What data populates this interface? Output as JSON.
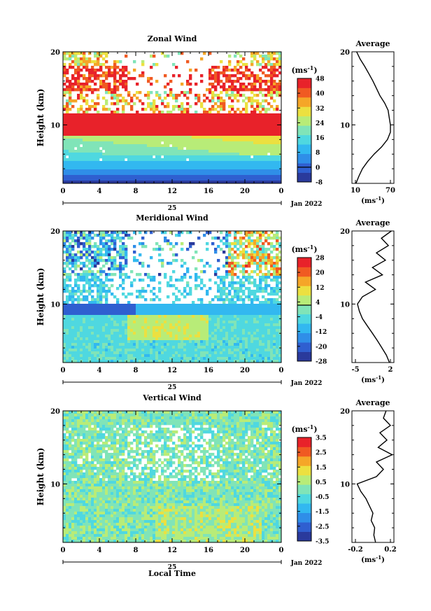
{
  "figure": {
    "x_time_label": "Local Time",
    "date_day": "25",
    "date_text": "Jan 2022",
    "colorbar_units": "(ms⁻¹)",
    "average_title": "Average",
    "y_axis_label": "Height (km)"
  },
  "colors": {
    "scale": [
      "#2a3a9c",
      "#2f5fd0",
      "#2f8ee8",
      "#32b8f0",
      "#4fd8e0",
      "#80e4b8",
      "#b8ec78",
      "#ece040",
      "#f5a628",
      "#f05a22",
      "#e8222a"
    ]
  },
  "chart_data": [
    {
      "type": "heatmap",
      "title": "Zonal Wind",
      "xlabel": "",
      "ylabel": "Height (km)",
      "x_ticks": [
        "0",
        "4",
        "8",
        "12",
        "16",
        "20",
        "0"
      ],
      "y_ticks": [
        "10",
        "20"
      ],
      "xlim": [
        0,
        24
      ],
      "ylim": [
        2,
        20
      ],
      "colorbar": {
        "units": "(ms⁻¹)",
        "ticks": [
          "48",
          "40",
          "32",
          "24",
          "16",
          "8",
          "0",
          "-8"
        ],
        "range": [
          -8,
          48
        ]
      },
      "profile": {
        "title": "Average",
        "xlabel": "(ms⁻¹)",
        "x_ticks": [
          "10",
          "70"
        ],
        "xlim": [
          10,
          70
        ],
        "heights": [
          2,
          3,
          4,
          5,
          6,
          7,
          8,
          9,
          10,
          11,
          12,
          13,
          14,
          15,
          16,
          17,
          18,
          19,
          20
        ],
        "values": [
          11,
          16,
          22,
          31,
          42,
          55,
          65,
          70,
          70,
          68,
          66,
          60,
          52,
          46,
          40,
          33,
          26,
          18,
          12
        ]
      }
    },
    {
      "type": "heatmap",
      "title": "Meridional Wind",
      "xlabel": "",
      "ylabel": "Height (km)",
      "x_ticks": [
        "0",
        "4",
        "8",
        "12",
        "16",
        "20",
        "0"
      ],
      "y_ticks": [
        "10",
        "20"
      ],
      "xlim": [
        0,
        24
      ],
      "ylim": [
        2,
        20
      ],
      "colorbar": {
        "units": "(ms⁻¹)",
        "ticks": [
          "28",
          "20",
          "12",
          "4",
          "-4",
          "-12",
          "-20",
          "-28"
        ],
        "range": [
          -28,
          28
        ]
      },
      "profile": {
        "title": "Average",
        "xlabel": "(ms⁻¹)",
        "x_ticks": [
          "-5",
          "2"
        ],
        "xlim": [
          -5,
          2
        ],
        "heights": [
          2,
          3,
          4,
          5,
          6,
          7,
          8,
          9,
          10,
          11,
          12,
          13,
          14,
          15,
          16,
          17,
          18,
          19,
          20
        ],
        "values": [
          1.8,
          1.2,
          0.3,
          -0.6,
          -1.6,
          -2.6,
          -3.6,
          -4.2,
          -4.6,
          -3.6,
          -1.0,
          -3.0,
          0.4,
          -1.6,
          1.0,
          -0.8,
          1.6,
          0.2,
          2.2
        ]
      }
    },
    {
      "type": "heatmap",
      "title": "Vertical Wind",
      "xlabel": "Local Time",
      "ylabel": "Height (km)",
      "x_ticks": [
        "0",
        "4",
        "8",
        "12",
        "16",
        "20",
        "0"
      ],
      "y_ticks": [
        "10",
        "20"
      ],
      "xlim": [
        0,
        24
      ],
      "ylim": [
        2,
        20
      ],
      "colorbar": {
        "units": "(ms⁻¹)",
        "ticks": [
          "3.5",
          "2.5",
          "1.5",
          "0.5",
          "-0.5",
          "-1.5",
          "-2.5",
          "-3.5"
        ],
        "range": [
          -3.5,
          3.5
        ]
      },
      "profile": {
        "title": "Average",
        "xlabel": "(ms⁻¹)",
        "x_ticks": [
          "-0.2",
          "0.2"
        ],
        "xlim": [
          -0.2,
          0.2
        ],
        "heights": [
          2,
          3,
          4,
          5,
          6,
          7,
          8,
          9,
          10,
          11,
          12,
          13,
          14,
          15,
          16,
          17,
          18,
          19,
          20
        ],
        "values": [
          0.03,
          0.01,
          0.02,
          -0.02,
          0.0,
          -0.04,
          -0.08,
          -0.14,
          -0.18,
          0.04,
          0.12,
          0.04,
          0.22,
          0.06,
          0.16,
          0.08,
          0.2,
          0.12,
          0.15
        ]
      }
    }
  ]
}
